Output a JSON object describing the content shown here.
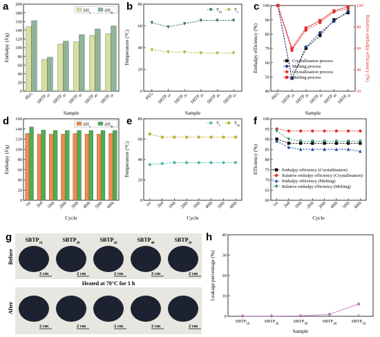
{
  "panels": {
    "a": "a",
    "b": "b",
    "c": "c",
    "d": "d",
    "e": "e",
    "f": "f",
    "g": "g",
    "h": "h"
  },
  "chart_data": [
    {
      "id": "a",
      "type": "bar",
      "categories": [
        "PEG",
        "SBTP10",
        "SBTP20",
        "SBTP30",
        "SBTP40",
        "SBTP50"
      ],
      "series": [
        {
          "name": "ΔHc",
          "values": [
            148,
            73,
            108,
            113,
            128,
            132
          ],
          "color": "#d4e29c"
        },
        {
          "name": "ΔHm",
          "values": [
            162,
            78,
            115,
            130,
            143,
            150
          ],
          "color": "#8fb39a"
        }
      ],
      "xlabel": "Sample",
      "ylabel": "Enthalpy (J/g)",
      "ylim": [
        0,
        200
      ],
      "yticks": [
        0,
        20,
        40,
        60,
        80,
        100,
        120,
        140,
        160,
        180,
        200
      ],
      "legend": "top-right"
    },
    {
      "id": "b",
      "type": "line",
      "categories": [
        "PEG",
        "SBTP10",
        "SBTP20",
        "SBTP30",
        "SBTP40",
        "SBTP50"
      ],
      "series": [
        {
          "name": "Tm",
          "values": [
            63,
            59,
            62,
            65,
            65,
            65
          ],
          "color": "#2f6b5c"
        },
        {
          "name": "Tc",
          "values": [
            38,
            36,
            36,
            35,
            35,
            35
          ],
          "color": "#a7b83a"
        }
      ],
      "xlabel": "Sample",
      "ylabel": "Temperature (°C)",
      "ylim": [
        0,
        80
      ],
      "yticks": [
        0,
        20,
        40,
        60,
        80
      ],
      "legend": "top-right"
    },
    {
      "id": "c",
      "type": "line",
      "categories": [
        "PEG",
        "SBTP10",
        "SBTP20",
        "SBTP30",
        "SBTP40",
        "SBTP50"
      ],
      "series": [
        {
          "name": "Crystallisation process",
          "axis": "left",
          "values": [
            100,
            49,
            70,
            79,
            90,
            95
          ],
          "color": "#000000",
          "marker": "square",
          "dash": true
        },
        {
          "name": "Melting process",
          "axis": "left",
          "values": [
            100,
            49,
            71,
            81,
            89,
            96
          ],
          "color": "#1e3a8a",
          "marker": "circle",
          "dash": true
        },
        {
          "name": "Crystallisation process",
          "axis": "right",
          "values": [
            100,
            58,
            77,
            84,
            94,
            97
          ],
          "color": "#e03030",
          "marker": "circle",
          "dash": true
        },
        {
          "name": "Melting process",
          "axis": "right",
          "values": [
            100,
            60,
            79,
            86,
            95,
            99
          ],
          "color": "#e03030",
          "marker": "square",
          "dash": false
        }
      ],
      "xlabel": "Sample",
      "ylabel": "Enthalpy efficiency (%)",
      "y2label": "Ralative enthalpy efficiency (%)",
      "ylim": [
        40,
        100
      ],
      "yticks": [
        40,
        50,
        60,
        70,
        80,
        90,
        100
      ],
      "y2lim": [
        20,
        100
      ],
      "y2ticks": [
        20,
        40,
        60,
        80,
        100
      ],
      "legend": "bottom-right"
    },
    {
      "id": "d",
      "type": "bar",
      "categories": [
        "1st",
        "2nd",
        "10th",
        "20th",
        "30th",
        "40th",
        "50th",
        "60th"
      ],
      "series": [
        {
          "name": "ΔHc",
          "values": [
            131,
            130,
            130,
            130,
            131,
            130,
            130,
            131
          ],
          "color": "#f2894a"
        },
        {
          "name": "ΔHm",
          "values": [
            144,
            138,
            137,
            137,
            137,
            137,
            137,
            137
          ],
          "color": "#4caf50"
        }
      ],
      "xlabel": "Cycle",
      "ylabel": "Enthalpy (J/g)",
      "ylim": [
        0,
        160
      ],
      "yticks": [
        0,
        20,
        40,
        60,
        80,
        100,
        120,
        140,
        160
      ],
      "legend": "top-right"
    },
    {
      "id": "e",
      "type": "line",
      "categories": [
        "1st",
        "2nd",
        "10th",
        "20th",
        "30th",
        "40th",
        "50th",
        "60th"
      ],
      "series": [
        {
          "name": "Tc",
          "values": [
            35,
            36,
            37,
            37,
            37,
            37,
            37,
            37
          ],
          "color": "#57b8b0"
        },
        {
          "name": "Tm",
          "values": [
            65,
            62,
            62,
            62,
            62,
            62,
            62,
            62
          ],
          "color": "#b8b030"
        }
      ],
      "xlabel": "Cycle",
      "ylabel": "Temperature (°C)",
      "ylim": [
        0,
        80
      ],
      "yticks": [
        0,
        20,
        40,
        60,
        80
      ],
      "legend": "top-right"
    },
    {
      "id": "f",
      "type": "line",
      "categories": [
        "1st",
        "2nd",
        "10th",
        "20th",
        "30th",
        "40th",
        "50th",
        "60th"
      ],
      "series": [
        {
          "name": "Enthalpy efficiency (Crystallisation)",
          "values": [
            90,
            88,
            88,
            88,
            88,
            88,
            88,
            88
          ],
          "color": "#000000",
          "marker": "square"
        },
        {
          "name": "Ralative enthalpy efficiency (Crystallisation)",
          "values": [
            95,
            94,
            94,
            94,
            94,
            94,
            94,
            94
          ],
          "color": "#e03030",
          "marker": "circle"
        },
        {
          "name": "Enthalpy efficiency (Melting)",
          "values": [
            89,
            86,
            85,
            85,
            85,
            85,
            85,
            84
          ],
          "color": "#1e50a0",
          "marker": "triangle"
        },
        {
          "name": "Ralative enthalpy efficiency (Melting)",
          "values": [
            94,
            90,
            89,
            89,
            89,
            89,
            89,
            89
          ],
          "color": "#2f8a7a",
          "marker": "triangle-down"
        }
      ],
      "xlabel": "Cycle",
      "ylabel": "Efficiency (%)",
      "ylim": [
        60,
        100
      ],
      "yticks": [
        60,
        65,
        70,
        75,
        80,
        85,
        90,
        95,
        100
      ],
      "legend": "bottom-left"
    },
    {
      "id": "h",
      "type": "line",
      "categories": [
        "SBTP10",
        "SBTP20",
        "SBTP30",
        "SBTP40",
        "SBTP50"
      ],
      "series": [
        {
          "name": "Leakage",
          "values": [
            0.1,
            0.1,
            0.2,
            1.0,
            6.0
          ],
          "color": "#c07ac0"
        }
      ],
      "xlabel": "Sample",
      "ylabel": "Leakage percentage (%)",
      "ylim": [
        0,
        40
      ],
      "yticks": [
        0,
        10,
        20,
        30,
        40
      ]
    }
  ],
  "photo": {
    "samples": [
      "SBTP10",
      "SBTP20",
      "SBTP30",
      "SBTP40",
      "SBTP50"
    ],
    "row_before": "Before",
    "row_after": "After",
    "banner": "Heated at 70°C for 1 h",
    "scale": "2 cm",
    "colors": {
      "background": "#e8e6e0",
      "disc": "#1c2230",
      "banner": "#ffffff"
    }
  }
}
